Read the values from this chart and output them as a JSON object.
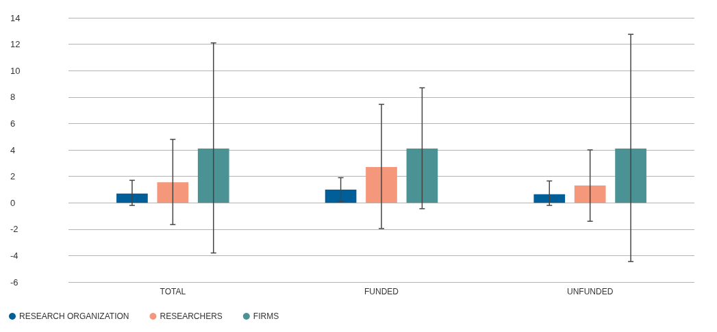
{
  "chart_data": {
    "type": "bar",
    "categories": [
      "TOTAL",
      "FUNDED",
      "UNFUNDED"
    ],
    "series": [
      {
        "name": "RESEARCH ORGANIZATION",
        "color": "#005f99",
        "values": [
          0.7,
          1.0,
          0.65
        ],
        "errors": [
          [
            -0.2,
            1.7
          ],
          [
            0.1,
            1.9
          ],
          [
            -0.2,
            1.65
          ]
        ]
      },
      {
        "name": "RESEARCHERS",
        "color": "#f4977a",
        "values": [
          1.55,
          2.7,
          1.3
        ],
        "errors": [
          [
            -1.65,
            4.8
          ],
          [
            -1.95,
            7.45
          ],
          [
            -1.4,
            4.0
          ]
        ]
      },
      {
        "name": "FIRMS",
        "color": "#4b9294",
        "values": [
          4.1,
          4.1,
          4.1
        ],
        "errors": [
          [
            -3.8,
            12.1
          ],
          [
            -0.45,
            8.7
          ],
          [
            -4.45,
            12.75
          ]
        ]
      }
    ],
    "ylim": [
      -6,
      14
    ],
    "yticks": [
      -6,
      -4,
      -2,
      0,
      2,
      4,
      6,
      8,
      10,
      12,
      14
    ],
    "grid": "y",
    "legend": "bottom left"
  }
}
